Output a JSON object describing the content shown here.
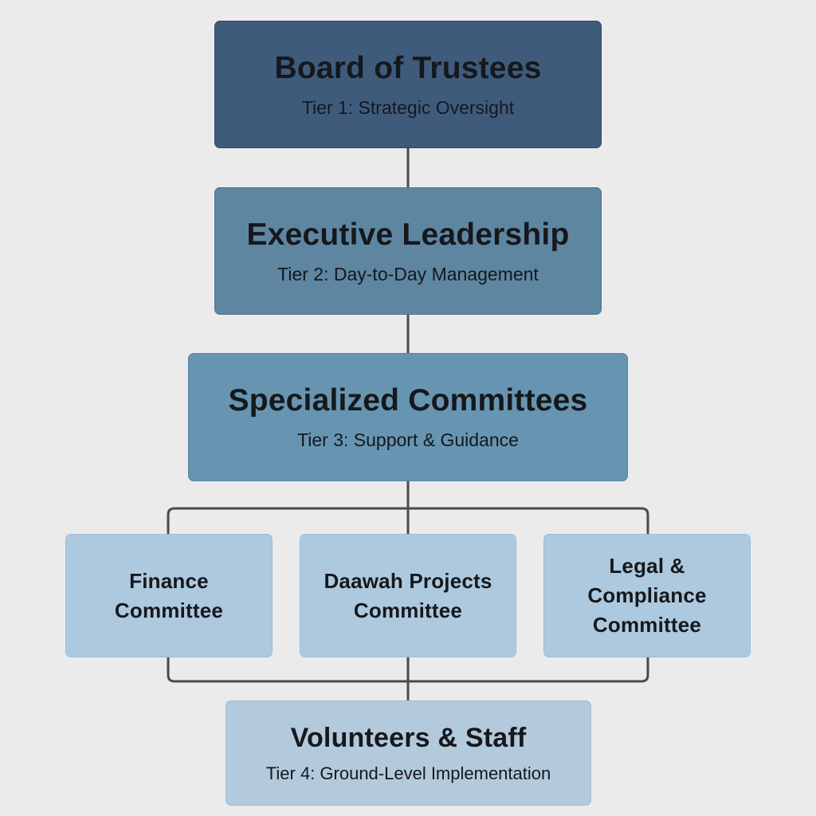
{
  "diagram": {
    "tiers": [
      {
        "title": "Board of Trustees",
        "subtitle": "Tier 1: Strategic Oversight"
      },
      {
        "title": "Executive Leadership",
        "subtitle": "Tier 2: Day-to-Day Management"
      },
      {
        "title": "Specialized Committees",
        "subtitle": "Tier 3: Support & Guidance"
      },
      {
        "title": "Volunteers & Staff",
        "subtitle": "Tier 4: Ground-Level Implementation"
      }
    ],
    "committees": [
      {
        "line1": "Finance",
        "line2": "Committee"
      },
      {
        "line1": "Daawah Projects",
        "line2": "Committee"
      },
      {
        "line1": "Legal &",
        "line2": "Compliance",
        "line3": "Committee"
      }
    ]
  },
  "colors": {
    "background": "#ebebec",
    "tier1": "#3f5b7c",
    "tier2": "#5e86a1",
    "tier3": "#6795b1",
    "committee": "#adc9df",
    "tier4": "#b3cadc",
    "connector": "#4a4a4a",
    "text": "#15181c"
  }
}
